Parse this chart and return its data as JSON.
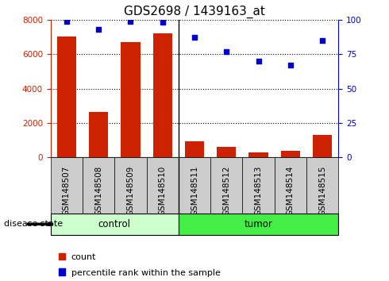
{
  "title": "GDS2698 / 1439163_at",
  "samples": [
    "GSM148507",
    "GSM148508",
    "GSM148509",
    "GSM148510",
    "GSM148511",
    "GSM148512",
    "GSM148513",
    "GSM148514",
    "GSM148515"
  ],
  "counts": [
    7000,
    2650,
    6700,
    7200,
    950,
    600,
    300,
    380,
    1300
  ],
  "percentiles": [
    99,
    93,
    99,
    98,
    87,
    77,
    70,
    67,
    85
  ],
  "groups": [
    "control",
    "control",
    "control",
    "control",
    "tumor",
    "tumor",
    "tumor",
    "tumor",
    "tumor"
  ],
  "control_color": "#ccffcc",
  "tumor_color": "#44ee44",
  "bar_color": "#cc2200",
  "dot_color": "#0000cc",
  "tick_box_color": "#cccccc",
  "ylim_left": [
    0,
    8000
  ],
  "ylim_right": [
    0,
    100
  ],
  "yticks_left": [
    0,
    2000,
    4000,
    6000,
    8000
  ],
  "yticks_right": [
    0,
    25,
    50,
    75,
    100
  ],
  "legend_count": "count",
  "legend_pct": "percentile rank within the sample",
  "disease_state_label": "disease state",
  "title_fontsize": 11,
  "tick_fontsize": 7.5,
  "label_fontsize": 8.5,
  "legend_fontsize": 8
}
